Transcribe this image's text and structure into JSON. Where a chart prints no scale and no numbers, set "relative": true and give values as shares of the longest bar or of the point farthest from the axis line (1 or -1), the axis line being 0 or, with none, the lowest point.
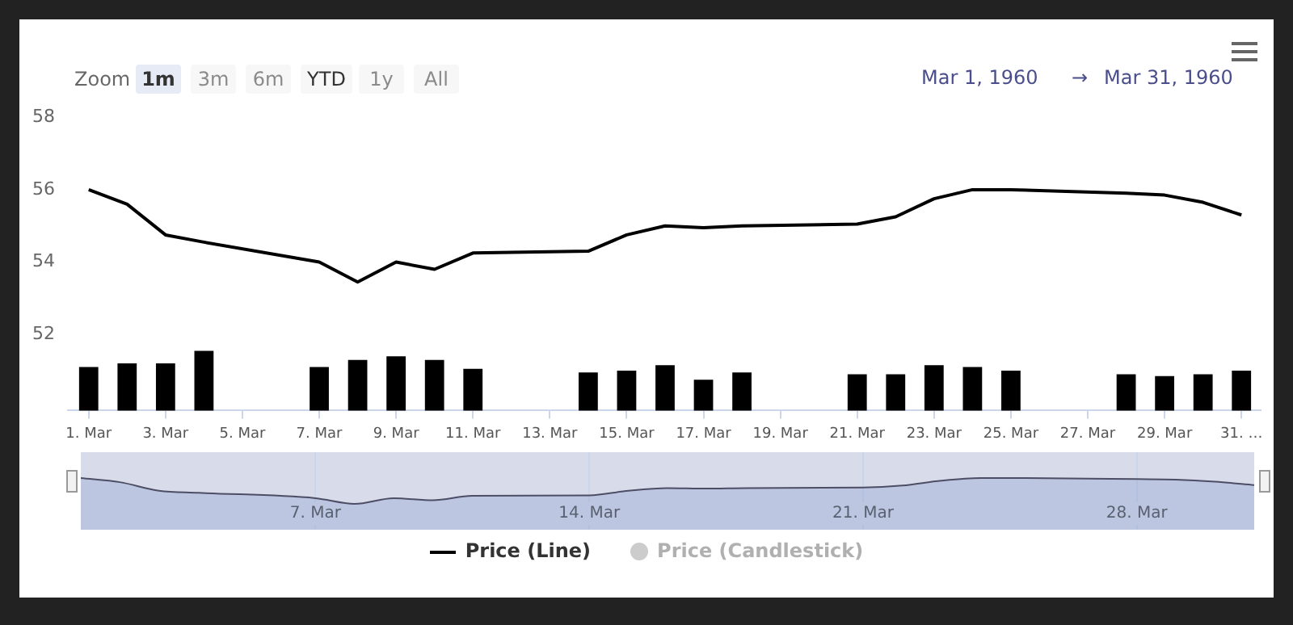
{
  "chart_data": [
    {
      "type": "line",
      "legend": "bottom",
      "grid": false,
      "x": [
        "1960-03-01",
        "1960-03-02",
        "1960-03-03",
        "1960-03-04",
        "1960-03-07",
        "1960-03-08",
        "1960-03-09",
        "1960-03-10",
        "1960-03-11",
        "1960-03-14",
        "1960-03-15",
        "1960-03-16",
        "1960-03-17",
        "1960-03-18",
        "1960-03-21",
        "1960-03-22",
        "1960-03-23",
        "1960-03-24",
        "1960-03-25",
        "1960-03-28",
        "1960-03-29",
        "1960-03-30",
        "1960-03-31"
      ],
      "series": [
        {
          "name": "Price (Line)",
          "color": "#000000",
          "values": [
            56.0,
            55.6,
            54.75,
            54.55,
            54.0,
            53.45,
            54.0,
            53.8,
            54.25,
            54.3,
            54.75,
            55.0,
            54.95,
            55.0,
            55.05,
            55.25,
            55.75,
            56.0,
            56.0,
            55.9,
            55.85,
            55.65,
            55.3
          ]
        },
        {
          "type": "bar",
          "color": "#000000",
          "values": [
            51.1,
            51.2,
            51.2,
            51.55,
            51.1,
            51.3,
            51.4,
            51.3,
            51.05,
            50.95,
            51.0,
            51.15,
            50.75,
            50.95,
            50.9,
            50.9,
            51.15,
            51.1,
            51.0,
            50.9,
            50.85,
            50.9,
            51.0
          ]
        }
      ],
      "xlim": [
        "1960-02-29T11:00",
        "1960-03-31T12:00"
      ],
      "xticks": [
        {
          "value": "1960-03-01",
          "label": "1. Mar"
        },
        {
          "value": "1960-03-03",
          "label": "3. Mar"
        },
        {
          "value": "1960-03-05",
          "label": "5. Mar"
        },
        {
          "value": "1960-03-07",
          "label": "7. Mar"
        },
        {
          "value": "1960-03-09",
          "label": "9. Mar"
        },
        {
          "value": "1960-03-11",
          "label": "11. Mar"
        },
        {
          "value": "1960-03-13",
          "label": "13. Mar"
        },
        {
          "value": "1960-03-15",
          "label": "15. Mar"
        },
        {
          "value": "1960-03-17",
          "label": "17. Mar"
        },
        {
          "value": "1960-03-19",
          "label": "19. Mar"
        },
        {
          "value": "1960-03-21",
          "label": "21. Mar"
        },
        {
          "value": "1960-03-23",
          "label": "23. Mar"
        },
        {
          "value": "1960-03-25",
          "label": "25. Mar"
        },
        {
          "value": "1960-03-27",
          "label": "27. Mar"
        },
        {
          "value": "1960-03-29",
          "label": "29. Mar"
        },
        {
          "value": "1960-03-31",
          "label": "31. …"
        }
      ],
      "ylim": [
        49.9,
        58
      ],
      "yticks": [
        52,
        54,
        56,
        58
      ],
      "annotations": [
        "Zoom",
        "1m",
        "3m",
        "6m",
        "YTD",
        "1y",
        "All",
        "Mar 1, 1960",
        "→",
        "Mar 31, 1960",
        "Price (Candlestick)"
      ]
    },
    {
      "type": "area",
      "grid": "x",
      "tick_labels": "x",
      "x": [
        "1960-03-01",
        "1960-03-02",
        "1960-03-03",
        "1960-03-04",
        "1960-03-07",
        "1960-03-08",
        "1960-03-09",
        "1960-03-10",
        "1960-03-11",
        "1960-03-14",
        "1960-03-15",
        "1960-03-16",
        "1960-03-17",
        "1960-03-18",
        "1960-03-21",
        "1960-03-22",
        "1960-03-23",
        "1960-03-24",
        "1960-03-25",
        "1960-03-28",
        "1960-03-29",
        "1960-03-30",
        "1960-03-31"
      ],
      "relative": true,
      "series": [
        {
          "color": "#4d4d66",
          "values": [
            1,
            0.84,
            0.51,
            0.43,
            0.22,
            0,
            0.22,
            0.14,
            0.31,
            0.33,
            0.51,
            0.61,
            0.59,
            0.61,
            0.63,
            0.71,
            0.9,
            1,
            1,
            0.96,
            0.94,
            0.86,
            0.73
          ]
        }
      ],
      "xlim": [
        "1960-03-01",
        "1960-03-31"
      ],
      "xticks": [
        {
          "value": "1960-03-07",
          "label": "7. Mar"
        },
        {
          "value": "1960-03-14",
          "label": "14. Mar"
        },
        {
          "value": "1960-03-21",
          "label": "21. Mar"
        },
        {
          "value": "1960-03-28",
          "label": "28. Mar"
        }
      ]
    }
  ]
}
